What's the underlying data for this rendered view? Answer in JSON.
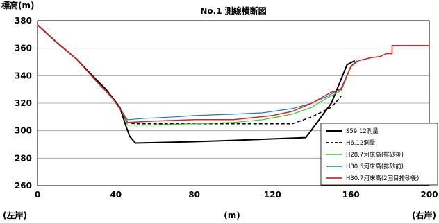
{
  "chart_data": {
    "type": "line",
    "title": "No.1 測線横断図",
    "ylabel": "標高(m)",
    "xlabel": "(m)",
    "left_bank_label": "(左岸)",
    "right_bank_label": "(右岸)",
    "xlim": [
      0,
      200
    ],
    "ylim": [
      260,
      380
    ],
    "xticks": [
      0,
      40,
      80,
      120,
      160,
      200
    ],
    "yticks": [
      260,
      280,
      300,
      320,
      340,
      360,
      380
    ],
    "grid": "horizontal",
    "legend_position": "bottom-right",
    "series": [
      {
        "name": "S59.12測量",
        "color": "#000000",
        "dash": "solid",
        "width": 2,
        "points": [
          [
            0,
            377
          ],
          [
            10,
            364
          ],
          [
            20,
            352
          ],
          [
            28,
            340
          ],
          [
            35,
            330
          ],
          [
            42,
            317
          ],
          [
            45,
            304
          ],
          [
            47,
            296
          ],
          [
            50,
            291
          ],
          [
            80,
            292
          ],
          [
            100,
            293
          ],
          [
            137,
            295
          ],
          [
            150,
            320
          ],
          [
            158,
            348
          ],
          [
            162,
            351
          ]
        ]
      },
      {
        "name": "H6.12測量",
        "color": "#000000",
        "dash": "dashed",
        "width": 1.5,
        "points": [
          [
            45,
            306
          ],
          [
            50,
            305
          ],
          [
            80,
            305
          ],
          [
            100,
            305
          ],
          [
            130,
            305
          ],
          [
            140,
            310
          ],
          [
            150,
            317
          ],
          [
            155,
            325
          ]
        ]
      },
      {
        "name": "H28.7河床高(排砂後)",
        "color": "#33cc33",
        "dash": "solid",
        "width": 1.2,
        "points": [
          [
            0,
            377
          ],
          [
            10,
            364
          ],
          [
            20,
            352
          ],
          [
            30,
            336
          ],
          [
            38,
            324
          ],
          [
            43,
            314
          ],
          [
            46,
            304
          ],
          [
            55,
            304
          ],
          [
            80,
            305
          ],
          [
            100,
            306
          ],
          [
            115,
            308
          ],
          [
            130,
            312
          ],
          [
            140,
            317
          ],
          [
            148,
            324
          ],
          [
            155,
            329
          ],
          [
            160,
            346
          ],
          [
            163,
            351
          ]
        ]
      },
      {
        "name": "H30.5河床高(排砂前)",
        "color": "#1f78c8",
        "dash": "solid",
        "width": 1.2,
        "points": [
          [
            0,
            377
          ],
          [
            10,
            364
          ],
          [
            20,
            352
          ],
          [
            30,
            336
          ],
          [
            38,
            324
          ],
          [
            43,
            314
          ],
          [
            46,
            308
          ],
          [
            55,
            309
          ],
          [
            70,
            310
          ],
          [
            80,
            311
          ],
          [
            100,
            312
          ],
          [
            115,
            313
          ],
          [
            130,
            316
          ],
          [
            140,
            320
          ],
          [
            148,
            325
          ],
          [
            155,
            331
          ],
          [
            160,
            347
          ],
          [
            163,
            351
          ]
        ]
      },
      {
        "name": "H30.7河床高(2回目排砂後)",
        "color": "#dd2222",
        "dash": "solid",
        "width": 1.5,
        "points": [
          [
            0,
            377
          ],
          [
            10,
            364
          ],
          [
            20,
            352
          ],
          [
            30,
            336
          ],
          [
            38,
            324
          ],
          [
            43,
            314
          ],
          [
            46,
            306
          ],
          [
            60,
            307
          ],
          [
            80,
            308
          ],
          [
            100,
            308
          ],
          [
            120,
            311
          ],
          [
            130,
            314
          ],
          [
            140,
            320
          ],
          [
            145,
            324
          ],
          [
            150,
            328
          ],
          [
            155,
            330
          ],
          [
            160,
            347
          ],
          [
            164,
            351
          ],
          [
            170,
            353
          ],
          [
            175,
            354
          ],
          [
            178,
            356
          ],
          [
            181,
            356
          ],
          [
            181,
            362
          ],
          [
            200,
            362
          ]
        ]
      }
    ]
  }
}
